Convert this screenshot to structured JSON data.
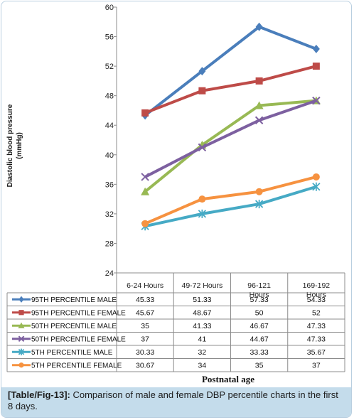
{
  "caption": {
    "tag": "[Table/Fig-13]:",
    "text": " Comparison of male and female DBP percentile charts in the first 8 days."
  },
  "chart_data": {
    "type": "line",
    "ylabel_line1": "Diastolic blood pressure",
    "ylabel_line2": "(mmHg)",
    "xlabel": "Postnatal age",
    "ylim": [
      24,
      60
    ],
    "yticks": [
      24,
      28,
      32,
      36,
      40,
      44,
      48,
      52,
      56,
      60
    ],
    "grid": false,
    "legend": "data table below chart",
    "categories": [
      [
        "6-24 Hours"
      ],
      [
        "49-72 Hours"
      ],
      [
        "96-121",
        "Hours"
      ],
      [
        "169-192",
        "Hours"
      ]
    ],
    "series": [
      {
        "name": "95TH PERCENTILE MALE",
        "color": "#4a7ebb",
        "marker": "diamond",
        "values": [
          45.33,
          51.33,
          57.33,
          54.33
        ],
        "labels": [
          "45.33",
          "51.33",
          "57.33",
          "54.33"
        ]
      },
      {
        "name": "95TH PERCENTILE FEMALE",
        "color": "#be4b48",
        "marker": "square",
        "values": [
          45.67,
          48.67,
          50,
          52
        ],
        "labels": [
          "45.67",
          "48.67",
          "50",
          "52"
        ]
      },
      {
        "name": "50TH PERCENTILE MALE",
        "color": "#98b954",
        "marker": "triangle",
        "values": [
          35,
          41.33,
          46.67,
          47.33
        ],
        "labels": [
          "35",
          "41.33",
          "46.67",
          "47.33"
        ]
      },
      {
        "name": "50TH PERCENTILE FEMALE",
        "color": "#7d60a0",
        "marker": "x",
        "values": [
          37,
          41,
          44.67,
          47.33
        ],
        "labels": [
          "37",
          "41",
          "44.67",
          "47.33"
        ]
      },
      {
        "name": "5TH PERCENTILE MALE",
        "color": "#46aac5",
        "marker": "star",
        "values": [
          30.33,
          32,
          33.33,
          35.67
        ],
        "labels": [
          "30.33",
          "32",
          "33.33",
          "35.67"
        ]
      },
      {
        "name": "5TH PERCENTILE FEMALE",
        "color": "#f69240",
        "marker": "circle",
        "values": [
          30.67,
          34,
          35,
          37
        ],
        "labels": [
          "30.67",
          "34",
          "35",
          "37"
        ]
      }
    ]
  }
}
